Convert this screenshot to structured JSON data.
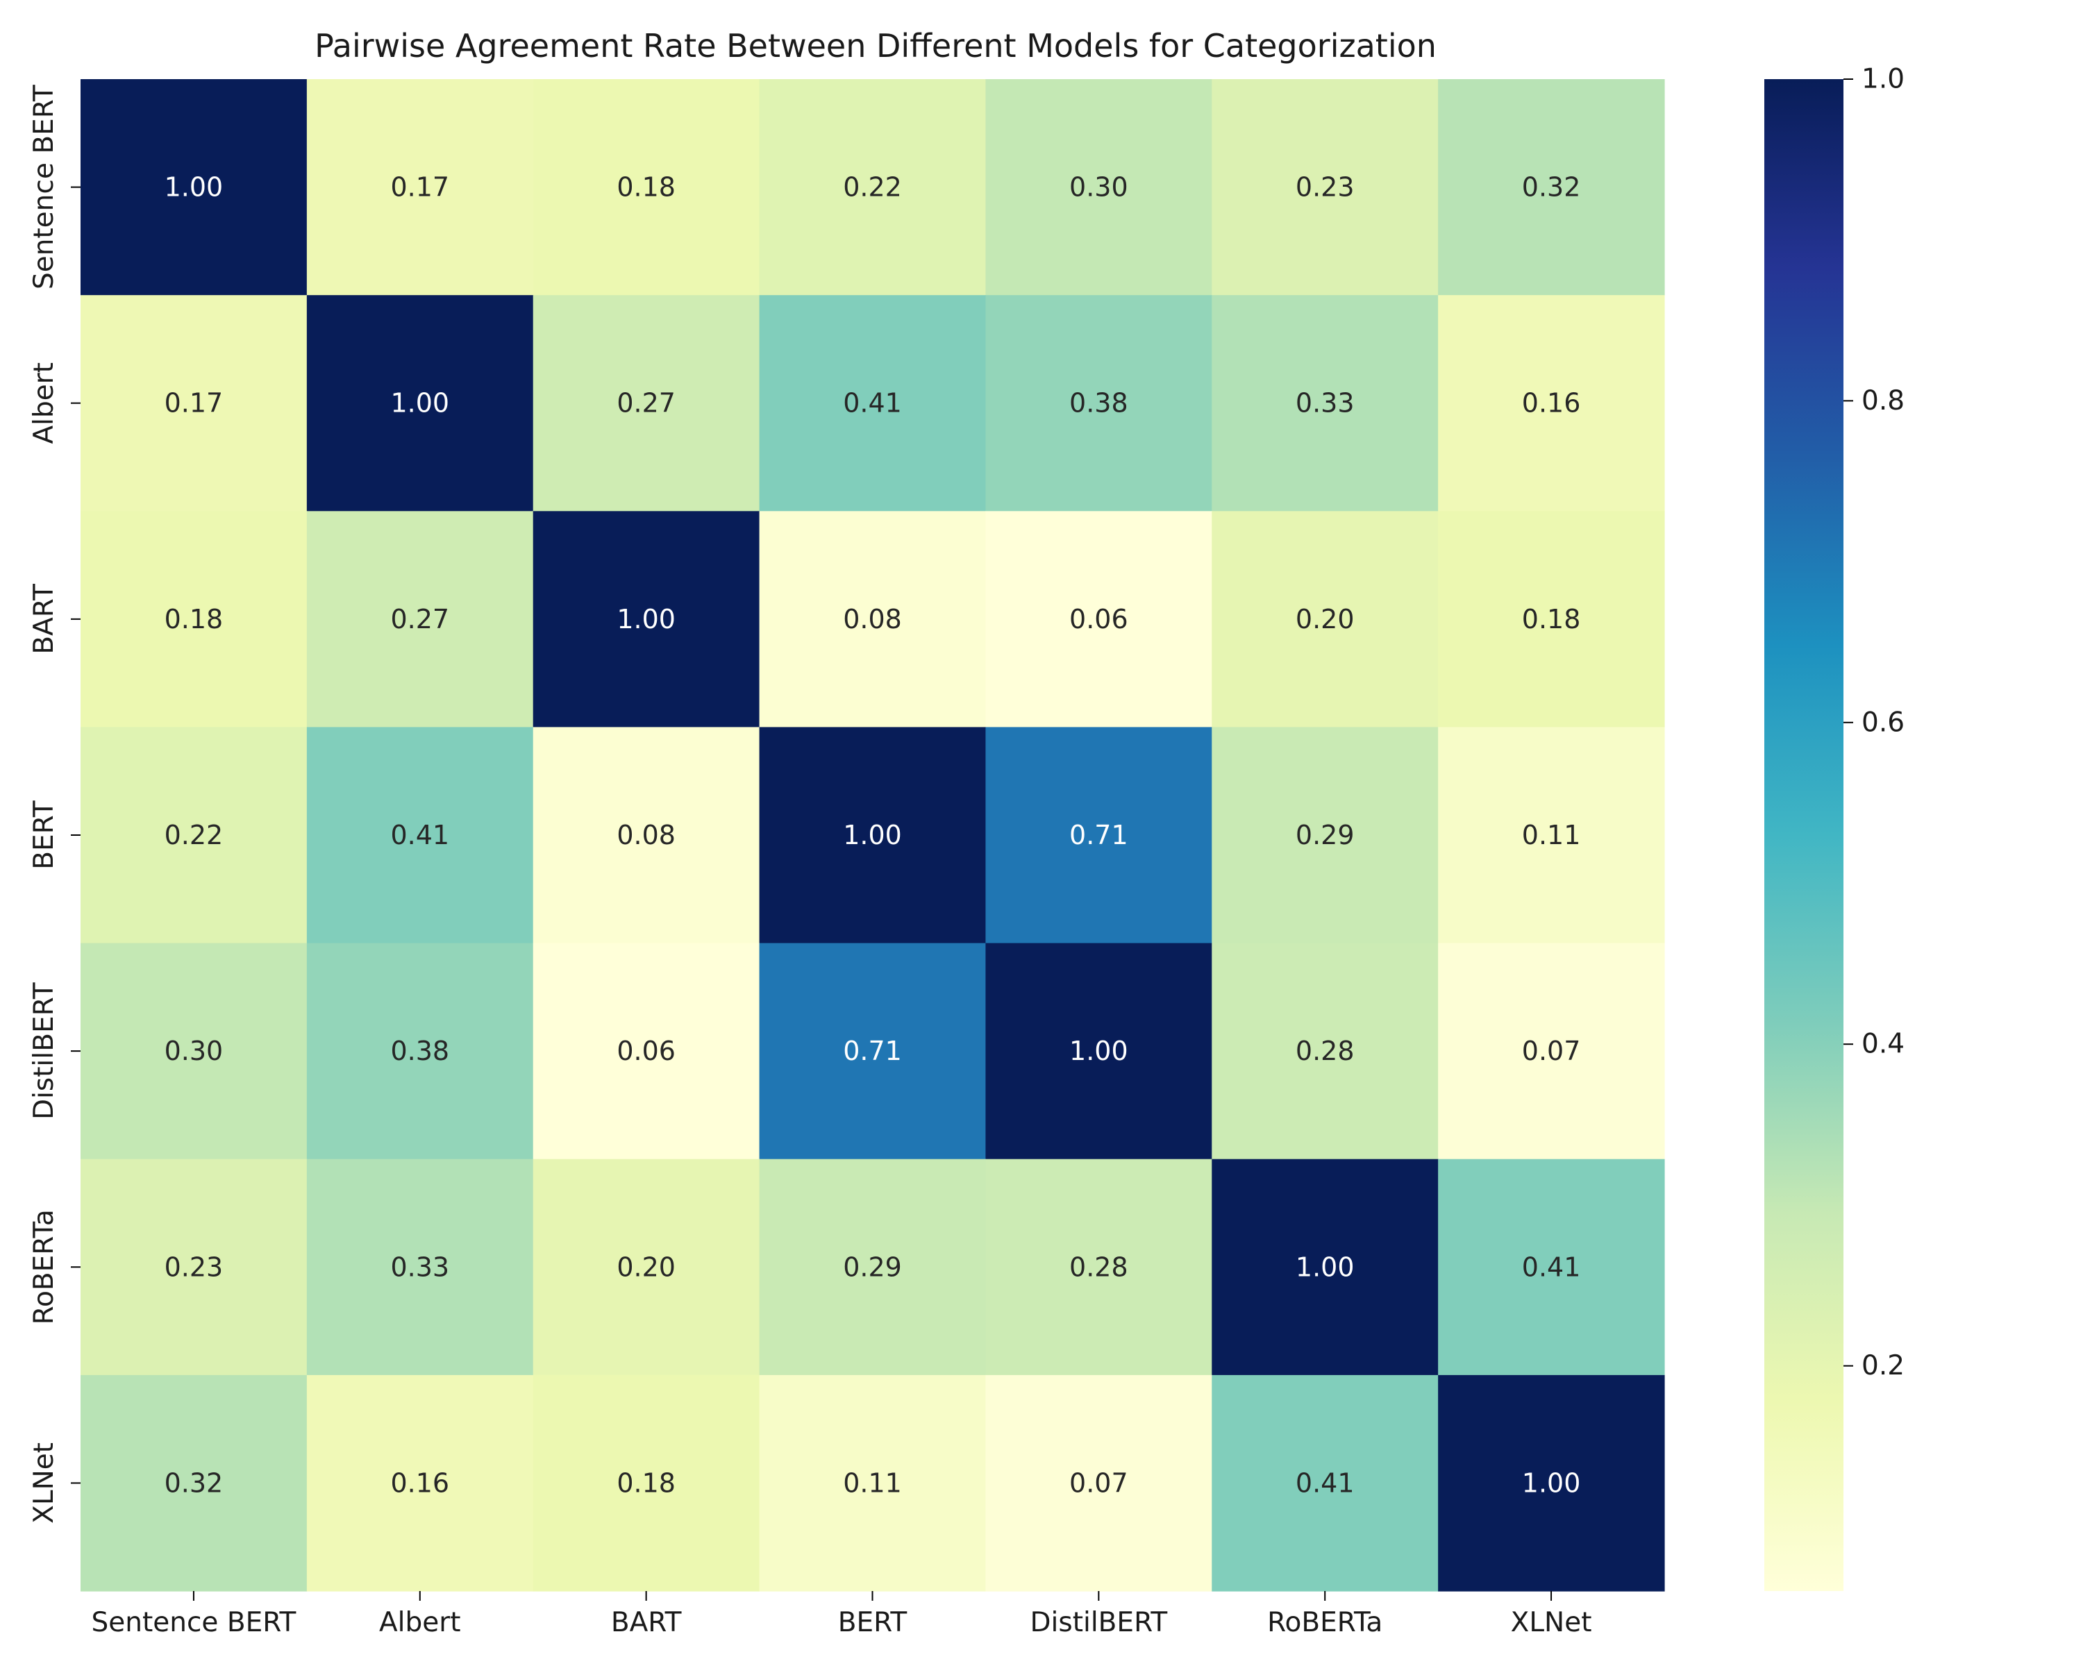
{
  "chart_data": {
    "type": "heatmap",
    "title": "Pairwise Agreement Rate Between Different Models for Categorization",
    "xlabel": "",
    "ylabel": "",
    "x_categories": [
      "Sentence BERT",
      "Albert",
      "BART",
      "BERT",
      "DistilBERT",
      "RoBERTa",
      "XLNet"
    ],
    "y_categories": [
      "Sentence BERT",
      "Albert",
      "BART",
      "BERT",
      "DistilBERT",
      "RoBERTa",
      "XLNet"
    ],
    "values": [
      [
        1.0,
        0.17,
        0.18,
        0.22,
        0.3,
        0.23,
        0.32
      ],
      [
        0.17,
        1.0,
        0.27,
        0.41,
        0.38,
        0.33,
        0.16
      ],
      [
        0.18,
        0.27,
        1.0,
        0.08,
        0.06,
        0.2,
        0.18
      ],
      [
        0.22,
        0.41,
        0.08,
        1.0,
        0.71,
        0.29,
        0.11
      ],
      [
        0.3,
        0.38,
        0.06,
        0.71,
        1.0,
        0.28,
        0.07
      ],
      [
        0.23,
        0.33,
        0.2,
        0.29,
        0.28,
        1.0,
        0.41
      ],
      [
        0.32,
        0.16,
        0.18,
        0.11,
        0.07,
        0.41,
        1.0
      ]
    ],
    "value_format": "2 decimals",
    "colorbar": {
      "colormap": "YlGnBu",
      "range": [
        0.06,
        1.0
      ],
      "ticks": [
        0.2,
        0.4,
        0.6,
        0.8,
        1.0
      ],
      "tick_labels": [
        "0.2",
        "0.4",
        "0.6",
        "0.8",
        "1.0"
      ]
    },
    "grid": false
  }
}
